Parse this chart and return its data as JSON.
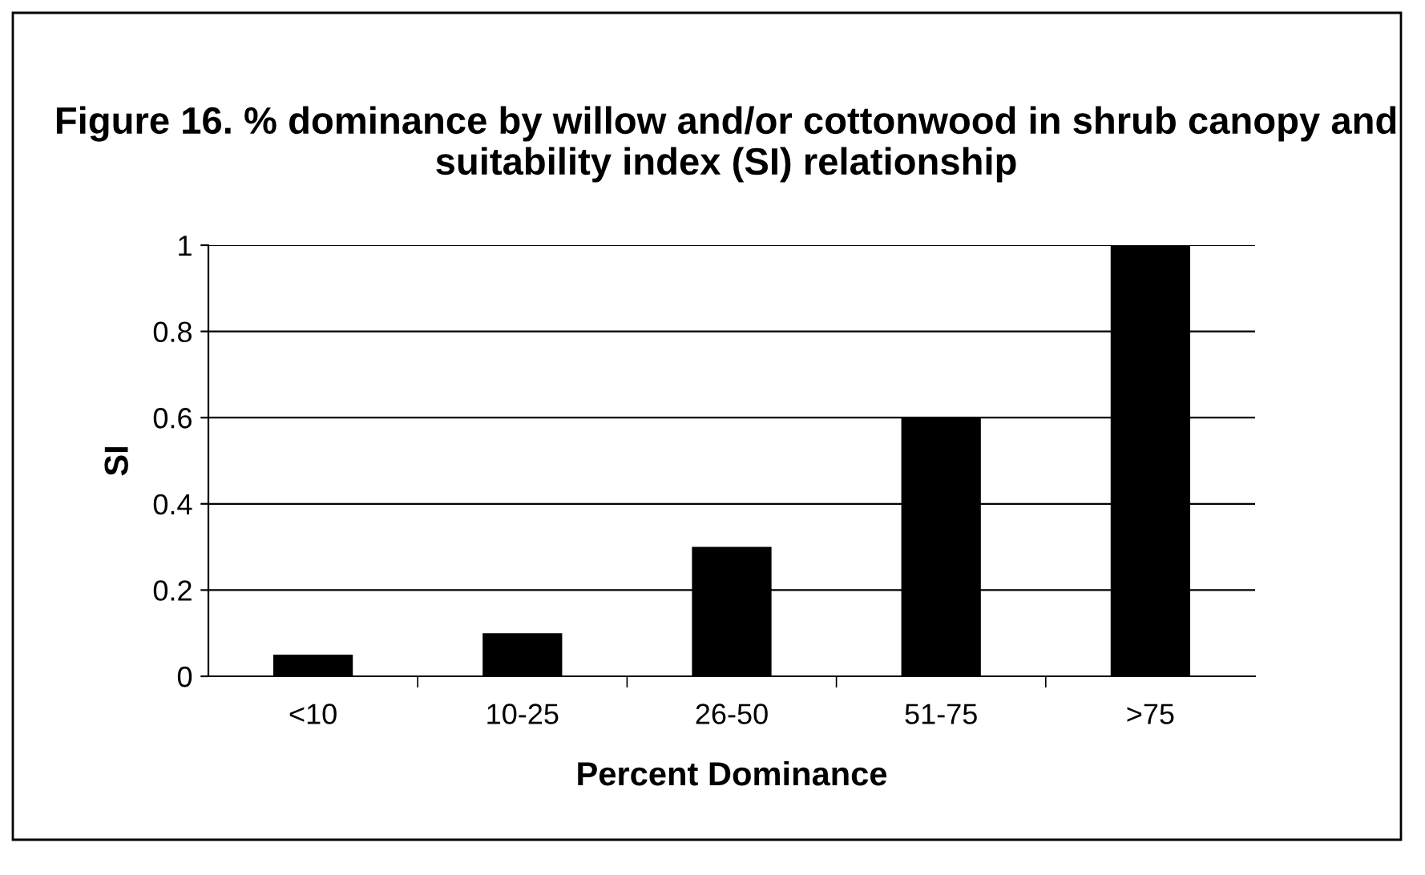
{
  "chart_data": {
    "type": "bar",
    "title": "Figure 16. % dominance by willow and/or cottonwood in shrub canopy and suitability index (SI) relationship",
    "xlabel": "Percent Dominance",
    "ylabel": "SI",
    "categories": [
      "<10",
      "10-25",
      "26-50",
      "51-75",
      ">75"
    ],
    "values": [
      0.05,
      0.1,
      0.3,
      0.6,
      1.0
    ],
    "color": "#000000",
    "ylim": [
      0,
      1
    ],
    "yticks": [
      0,
      0.2,
      0.4,
      0.6,
      0.8,
      1
    ],
    "grid": "y"
  }
}
